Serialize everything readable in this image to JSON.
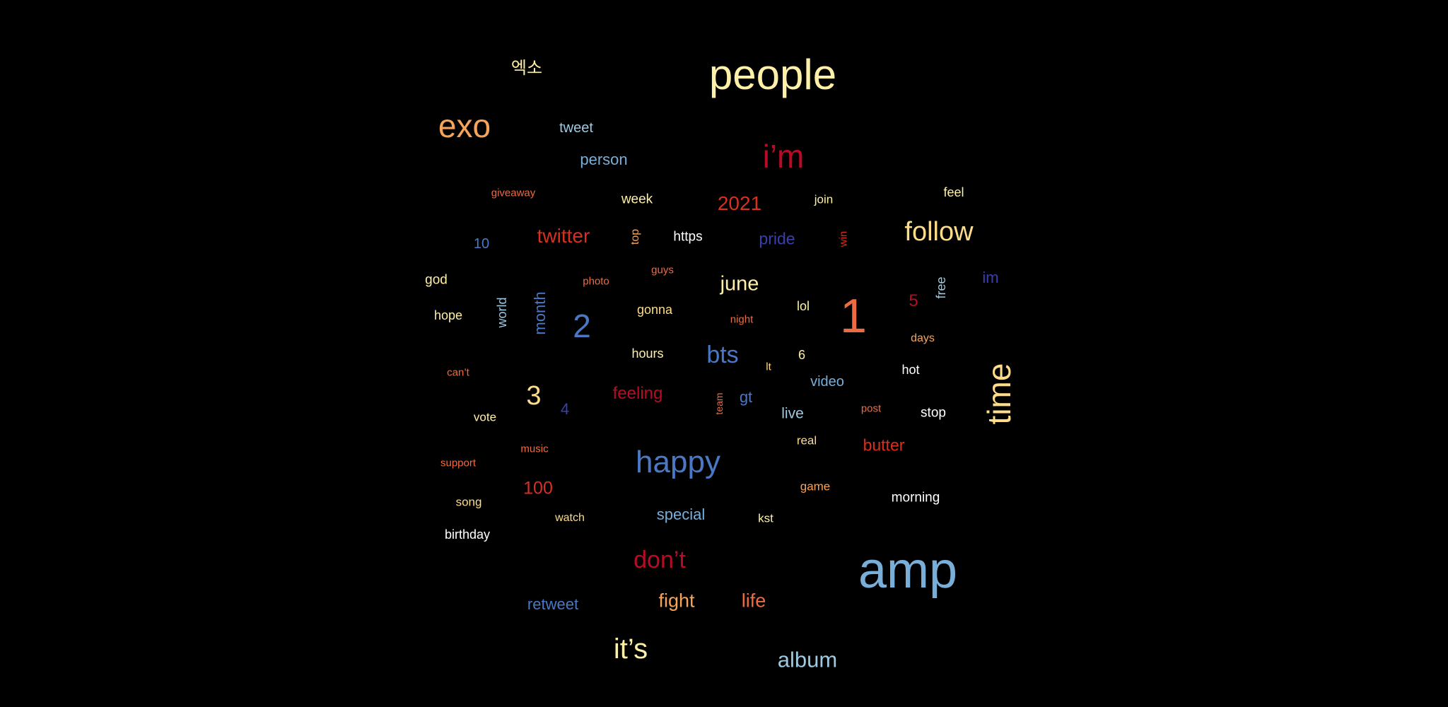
{
  "palette": {
    "pale_yellow": "#fff0a8",
    "yellow": "#fddc8a",
    "orange": "#f7a45a",
    "red_orange": "#ee6b42",
    "red": "#d7301f",
    "crimson": "#b80b26",
    "light_blue": "#9ecae1",
    "sky_blue": "#79aed8",
    "blue": "#4a78c4",
    "indigo": "#3b3fae",
    "white": "#ffffff"
  },
  "words": [
    {
      "text": "people",
      "color": "#fff0a8",
      "vertical": false
    },
    {
      "text": "엑소",
      "color": "#fff0a8",
      "vertical": false
    },
    {
      "text": "exo",
      "color": "#f7a45a",
      "vertical": false
    },
    {
      "text": "tweet",
      "color": "#9ecae1",
      "vertical": false
    },
    {
      "text": "person",
      "color": "#79aed8",
      "vertical": false
    },
    {
      "text": "i’m",
      "color": "#b80b26",
      "vertical": false
    },
    {
      "text": "giveaway",
      "color": "#ee6b42",
      "vertical": false
    },
    {
      "text": "week",
      "color": "#fff0a8",
      "vertical": false
    },
    {
      "text": "2021",
      "color": "#d7301f",
      "vertical": false
    },
    {
      "text": "join",
      "color": "#fff0a8",
      "vertical": false
    },
    {
      "text": "feel",
      "color": "#fff0a8",
      "vertical": false
    },
    {
      "text": "10",
      "color": "#4a78c4",
      "vertical": false
    },
    {
      "text": "twitter",
      "color": "#d7301f",
      "vertical": false
    },
    {
      "text": "top",
      "color": "#f7a45a",
      "vertical": true
    },
    {
      "text": "https",
      "color": "#ffffff",
      "vertical": false
    },
    {
      "text": "pride",
      "color": "#3b3fae",
      "vertical": false
    },
    {
      "text": "win",
      "color": "#d7301f",
      "vertical": true
    },
    {
      "text": "follow",
      "color": "#fddc8a",
      "vertical": false
    },
    {
      "text": "god",
      "color": "#fff0a8",
      "vertical": false
    },
    {
      "text": "photo",
      "color": "#ee6b42",
      "vertical": false
    },
    {
      "text": "guys",
      "color": "#ee6b42",
      "vertical": false
    },
    {
      "text": "june",
      "color": "#fff0a8",
      "vertical": false
    },
    {
      "text": "im",
      "color": "#3b3fae",
      "vertical": false
    },
    {
      "text": "free",
      "color": "#9ecae1",
      "vertical": true
    },
    {
      "text": "5",
      "color": "#b80b26",
      "vertical": false
    },
    {
      "text": "hope",
      "color": "#fff0a8",
      "vertical": false
    },
    {
      "text": "world",
      "color": "#9ecae1",
      "vertical": true
    },
    {
      "text": "month",
      "color": "#4a78c4",
      "vertical": true
    },
    {
      "text": "2",
      "color": "#4a78c4",
      "vertical": false
    },
    {
      "text": "gonna",
      "color": "#fddc8a",
      "vertical": false
    },
    {
      "text": "night",
      "color": "#ee6b42",
      "vertical": false
    },
    {
      "text": "lol",
      "color": "#fff0a8",
      "vertical": false
    },
    {
      "text": "1",
      "color": "#ee6b42",
      "vertical": false
    },
    {
      "text": "days",
      "color": "#f7a45a",
      "vertical": false
    },
    {
      "text": "hours",
      "color": "#fff0a8",
      "vertical": false
    },
    {
      "text": "bts",
      "color": "#4a78c4",
      "vertical": false
    },
    {
      "text": "6",
      "color": "#fff0a8",
      "vertical": false
    },
    {
      "text": "lt",
      "color": "#fddc8a",
      "vertical": false
    },
    {
      "text": "can’t",
      "color": "#ee6b42",
      "vertical": false
    },
    {
      "text": "hot",
      "color": "#ffffff",
      "vertical": false
    },
    {
      "text": "video",
      "color": "#79aed8",
      "vertical": false
    },
    {
      "text": "time",
      "color": "#fddc8a",
      "vertical": true
    },
    {
      "text": "3",
      "color": "#fddc8a",
      "vertical": false
    },
    {
      "text": "feeling",
      "color": "#b80b26",
      "vertical": false
    },
    {
      "text": "team",
      "color": "#ee6b42",
      "vertical": true
    },
    {
      "text": "gt",
      "color": "#4a78c4",
      "vertical": false
    },
    {
      "text": "4",
      "color": "#3b3fae",
      "vertical": false
    },
    {
      "text": "live",
      "color": "#9ecae1",
      "vertical": false
    },
    {
      "text": "post",
      "color": "#ee6b42",
      "vertical": false
    },
    {
      "text": "stop",
      "color": "#ffffff",
      "vertical": false
    },
    {
      "text": "vote",
      "color": "#fff0a8",
      "vertical": false
    },
    {
      "text": "real",
      "color": "#fddc8a",
      "vertical": false
    },
    {
      "text": "butter",
      "color": "#d7301f",
      "vertical": false
    },
    {
      "text": "music",
      "color": "#ee6b42",
      "vertical": false
    },
    {
      "text": "support",
      "color": "#ee6b42",
      "vertical": false
    },
    {
      "text": "happy",
      "color": "#4a78c4",
      "vertical": false
    },
    {
      "text": "100",
      "color": "#d7301f",
      "vertical": false
    },
    {
      "text": "game",
      "color": "#f7a45a",
      "vertical": false
    },
    {
      "text": "morning",
      "color": "#ffffff",
      "vertical": false
    },
    {
      "text": "song",
      "color": "#fddc8a",
      "vertical": false
    },
    {
      "text": "special",
      "color": "#79aed8",
      "vertical": false
    },
    {
      "text": "watch",
      "color": "#fddc8a",
      "vertical": false
    },
    {
      "text": "kst",
      "color": "#fff0a8",
      "vertical": false
    },
    {
      "text": "birthday",
      "color": "#ffffff",
      "vertical": false
    },
    {
      "text": "don’t",
      "color": "#b80b26",
      "vertical": false
    },
    {
      "text": "amp",
      "color": "#79aed8",
      "vertical": false
    },
    {
      "text": "retweet",
      "color": "#4a78c4",
      "vertical": false
    },
    {
      "text": "fight",
      "color": "#f7a45a",
      "vertical": false
    },
    {
      "text": "life",
      "color": "#ee6b42",
      "vertical": false
    },
    {
      "text": "it’s",
      "color": "#fff0a8",
      "vertical": false
    },
    {
      "text": "album",
      "color": "#9ecae1",
      "vertical": false
    }
  ]
}
